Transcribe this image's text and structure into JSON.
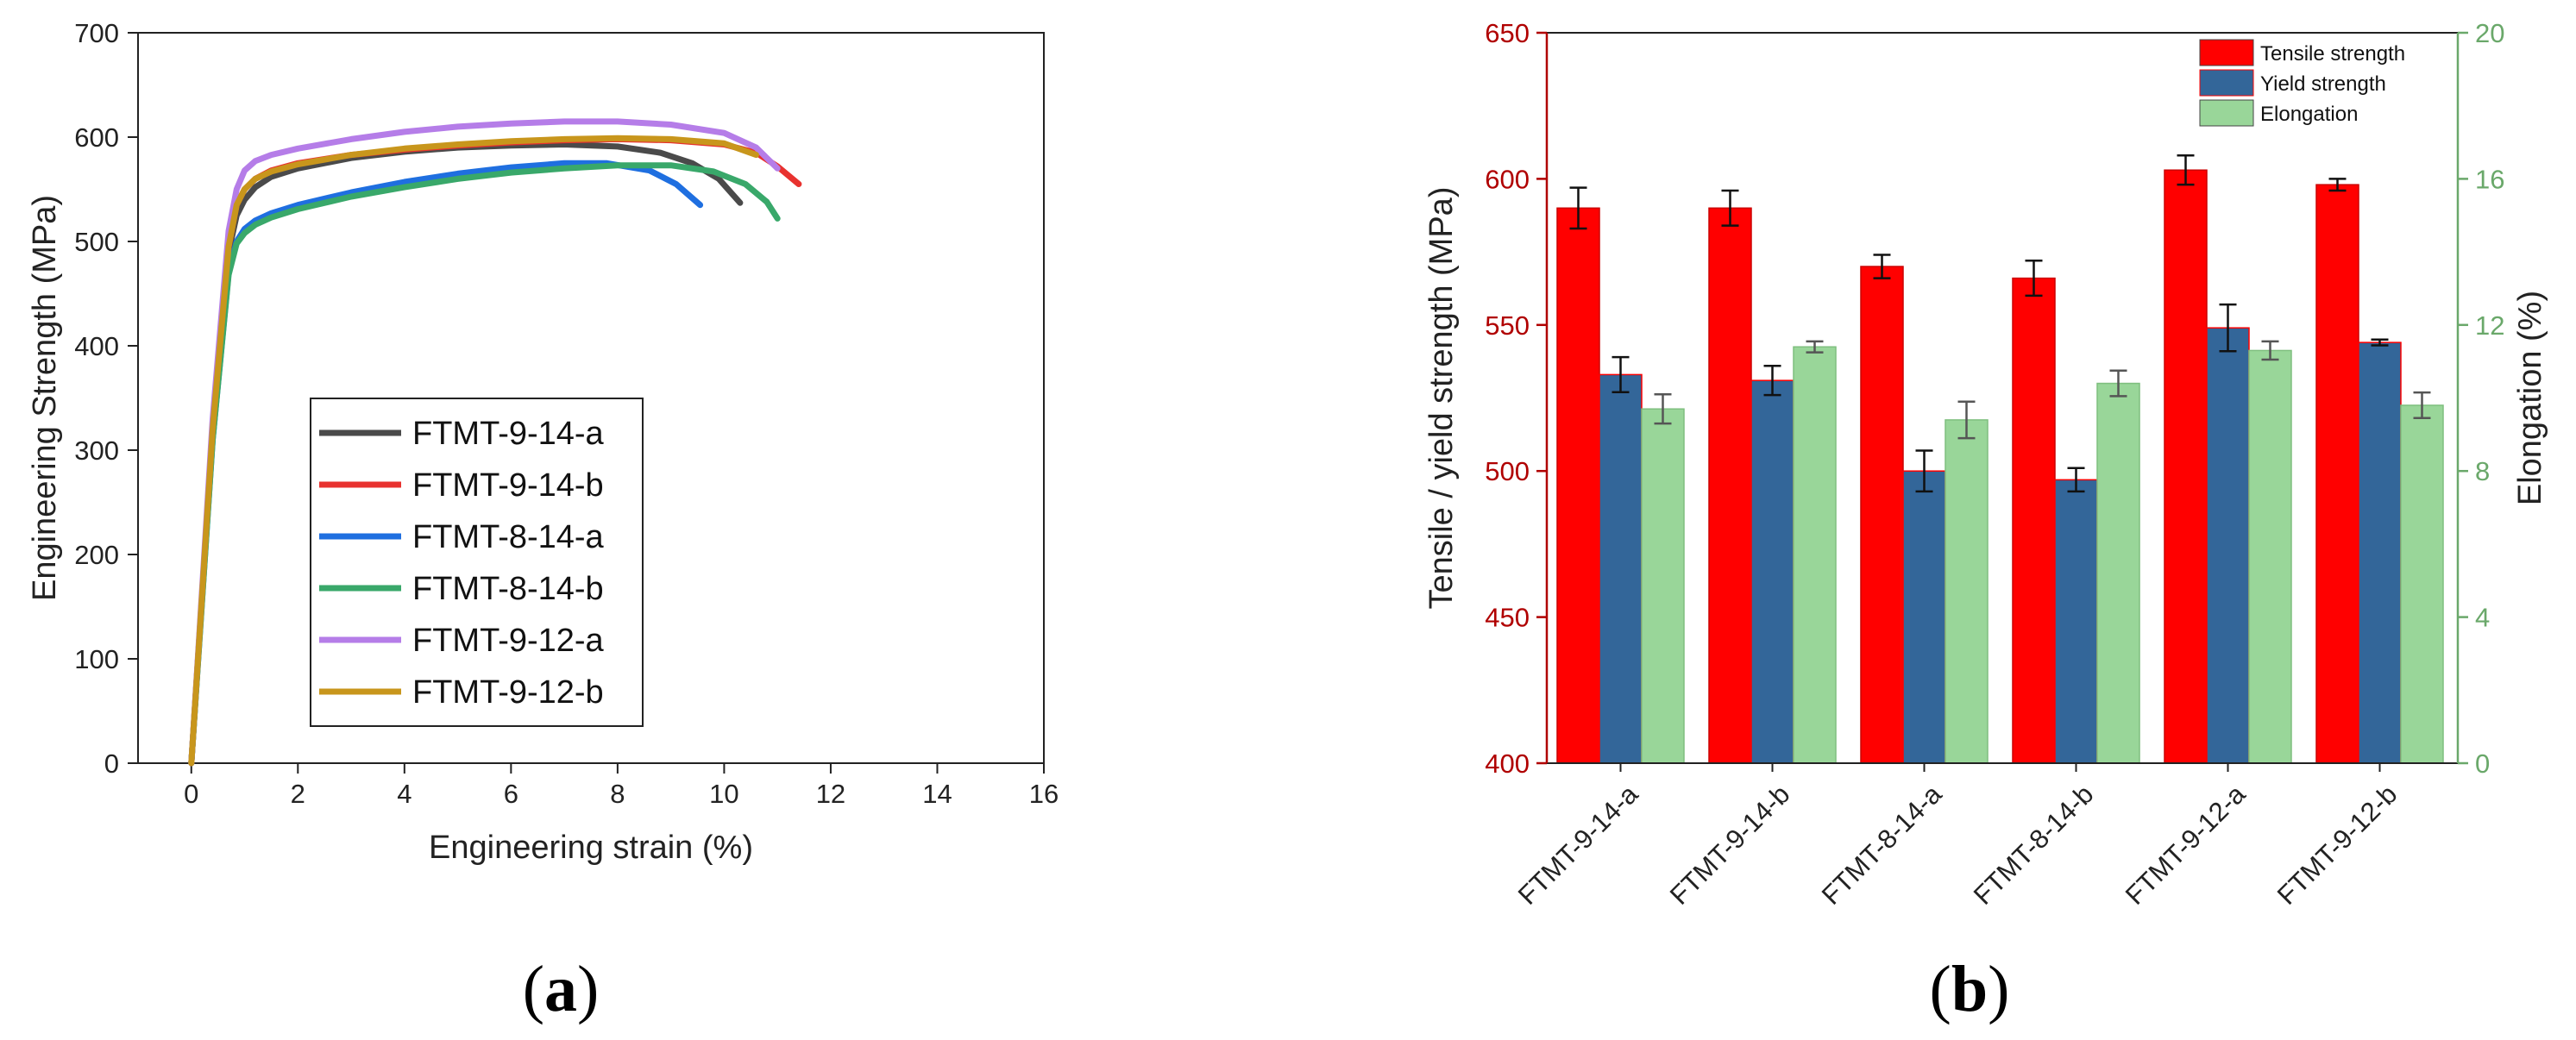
{
  "panels": {
    "a": {
      "label": "(a)",
      "label_bold": "a"
    },
    "b": {
      "label": "(b)",
      "label_bold": "b"
    }
  },
  "chart_data": [
    {
      "type": "line",
      "xlabel": "Engineering strain (%)",
      "ylabel": "Engineering Strength (MPa)",
      "xlim": [
        -1,
        16
      ],
      "ylim": [
        0,
        700
      ],
      "xticks": [
        0,
        2,
        4,
        6,
        8,
        10,
        12,
        14,
        16
      ],
      "yticks": [
        0,
        100,
        200,
        300,
        400,
        500,
        600,
        700
      ],
      "legend_position": "center",
      "series": [
        {
          "name": "FTMT-9-14-a",
          "color": "#4a4a4a",
          "x": [
            0,
            0.4,
            0.7,
            0.85,
            1.0,
            1.2,
            1.5,
            2,
            3,
            4,
            5,
            6,
            7,
            8,
            8.8,
            9.4,
            9.9,
            10.3
          ],
          "y": [
            0,
            320,
            490,
            525,
            540,
            552,
            562,
            570,
            580,
            586,
            590,
            592,
            593,
            591,
            585,
            575,
            560,
            537
          ]
        },
        {
          "name": "FTMT-9-14-b",
          "color": "#e8322f",
          "x": [
            0,
            0.4,
            0.7,
            0.85,
            1.0,
            1.2,
            1.5,
            2,
            3,
            4,
            5,
            6,
            7,
            8,
            9,
            10,
            10.6,
            11.0,
            11.4
          ],
          "y": [
            0,
            320,
            495,
            535,
            550,
            560,
            568,
            575,
            583,
            588,
            592,
            595,
            597,
            598,
            597,
            593,
            585,
            572,
            555
          ]
        },
        {
          "name": "FTMT-8-14-a",
          "color": "#1f6fe0",
          "x": [
            0,
            0.4,
            0.7,
            0.85,
            1.0,
            1.2,
            1.5,
            2,
            3,
            4,
            5,
            6,
            7,
            7.8,
            8.6,
            9.1,
            9.55
          ],
          "y": [
            0,
            310,
            470,
            500,
            512,
            520,
            527,
            535,
            547,
            557,
            565,
            571,
            575,
            575,
            568,
            555,
            535
          ]
        },
        {
          "name": "FTMT-8-14-b",
          "color": "#39a86a",
          "x": [
            0,
            0.4,
            0.7,
            0.85,
            1.0,
            1.2,
            1.5,
            2,
            3,
            4,
            5,
            6,
            7,
            8,
            9,
            9.8,
            10.4,
            10.8,
            11.0
          ],
          "y": [
            0,
            310,
            468,
            498,
            508,
            516,
            523,
            531,
            543,
            552,
            560,
            566,
            570,
            573,
            573,
            567,
            555,
            538,
            522
          ]
        },
        {
          "name": "FTMT-9-12-a",
          "color": "#b57de8",
          "x": [
            0,
            0.4,
            0.7,
            0.85,
            1.0,
            1.2,
            1.5,
            2,
            3,
            4,
            5,
            6,
            7,
            8,
            9,
            10,
            10.6,
            11.0
          ],
          "y": [
            0,
            330,
            510,
            550,
            568,
            577,
            583,
            589,
            598,
            605,
            610,
            613,
            615,
            615,
            612,
            604,
            590,
            570
          ]
        },
        {
          "name": "FTMT-9-12-b",
          "color": "#c8961c",
          "x": [
            0,
            0.4,
            0.7,
            0.85,
            1.0,
            1.2,
            1.5,
            2,
            3,
            4,
            5,
            6,
            7,
            8,
            9,
            10,
            10.6
          ],
          "y": [
            0,
            320,
            495,
            535,
            550,
            560,
            567,
            574,
            583,
            589,
            593,
            596,
            598,
            599,
            598,
            594,
            583
          ]
        }
      ]
    },
    {
      "type": "bar",
      "ylabel": "Tensile / yield strength (MPa)",
      "y2label": "Elongation (%)",
      "ylim": [
        400,
        650
      ],
      "yticks": [
        400,
        450,
        500,
        550,
        600,
        650
      ],
      "y2lim": [
        0,
        20
      ],
      "y2ticks": [
        0,
        4,
        8,
        12,
        16,
        20
      ],
      "categories": [
        "FTMT-9-14-a",
        "FTMT-9-14-b",
        "FTMT-8-14-a",
        "FTMT-8-14-b",
        "FTMT-9-12-a",
        "FTMT-9-12-b"
      ],
      "legend_position": "top-right",
      "series": [
        {
          "name": "Tensile strength",
          "axis": "left",
          "color": "#ff0000",
          "values": [
            590,
            590,
            570,
            566,
            603,
            598
          ],
          "errors": [
            7,
            6,
            4,
            6,
            5,
            2
          ]
        },
        {
          "name": "Yield strength",
          "axis": "left",
          "color": "#336699",
          "values": [
            533,
            531,
            500,
            497,
            549,
            544
          ],
          "errors": [
            6,
            5,
            7,
            4,
            8,
            1
          ]
        },
        {
          "name": "Elongation",
          "axis": "right",
          "color": "#99d699",
          "values": [
            9.7,
            11.4,
            9.4,
            10.4,
            11.3,
            9.8
          ],
          "errors": [
            0.4,
            0.15,
            0.5,
            0.35,
            0.25,
            0.35
          ]
        }
      ],
      "colors": {
        "left_axis": "#b00000",
        "right_axis": "#6aa86a"
      }
    }
  ]
}
